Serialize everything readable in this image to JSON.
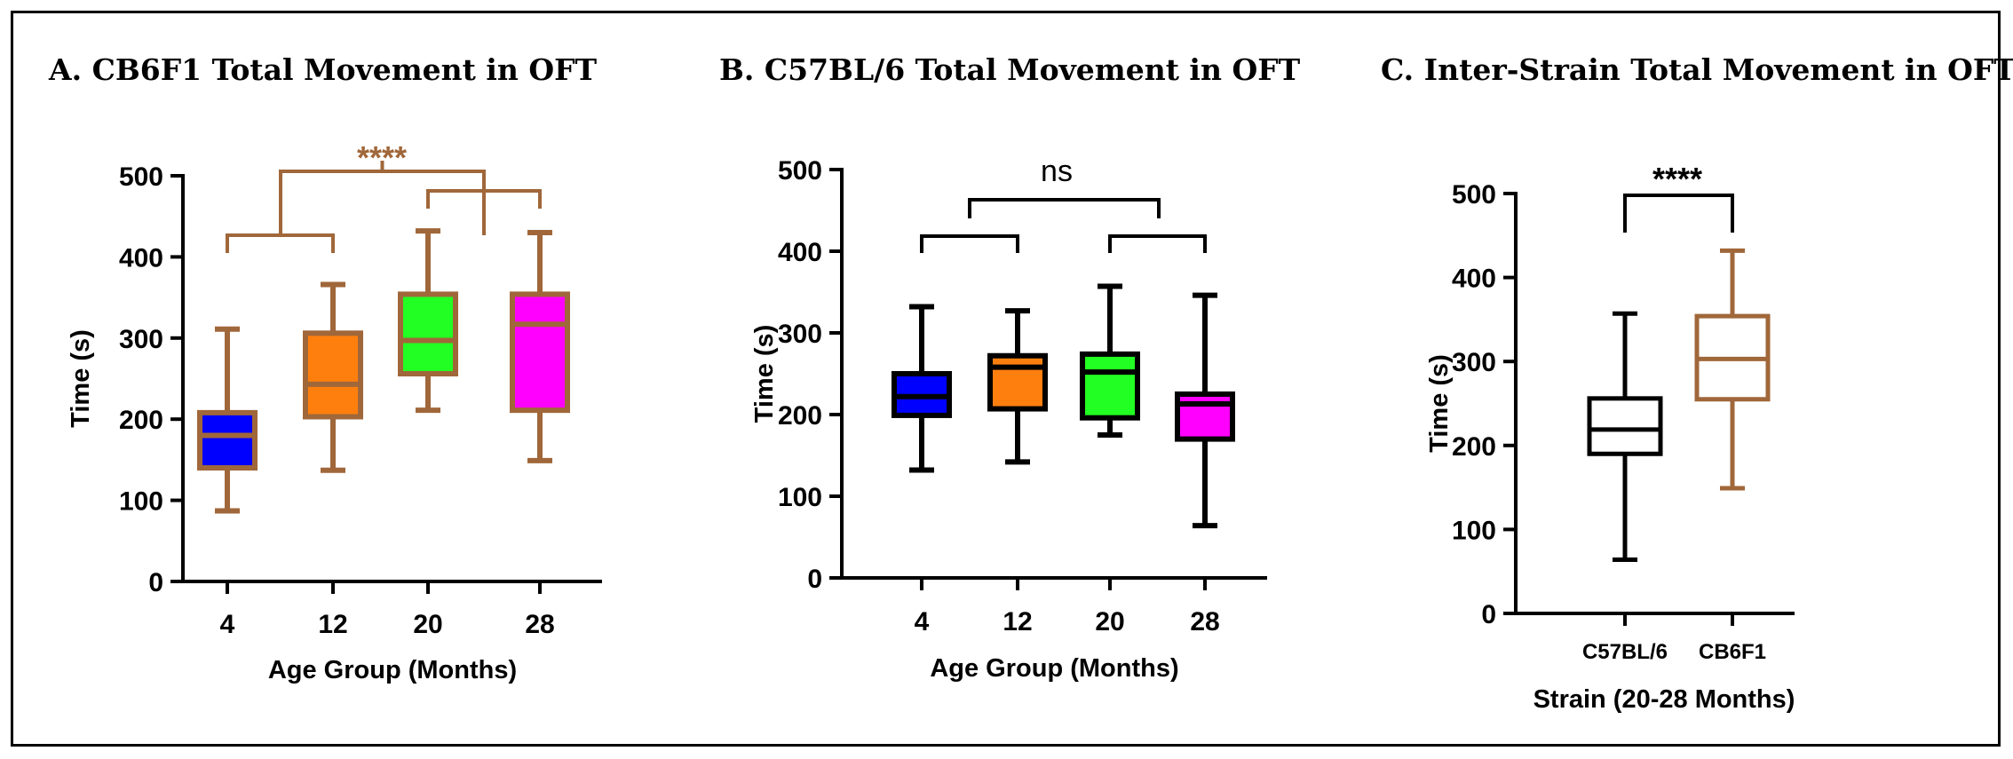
{
  "chart_data": [
    {
      "type": "box",
      "title": "A.  CB6F1 Total Movement in OFT",
      "xlabel": "Age Group (Months)",
      "ylabel": "Time (s)",
      "ylim": [
        0,
        500
      ],
      "yticks": [
        "0",
        "100",
        "200",
        "300",
        "400",
        "500"
      ],
      "categories": [
        "4",
        "12",
        "20",
        "28"
      ],
      "stroke_color": "#A0673A",
      "fill_colors": [
        "#0000FF",
        "#FF7F0E",
        "#22FF22",
        "#FF00FF"
      ],
      "boxes": [
        {
          "min": 87,
          "q1": 140,
          "median": 180,
          "q3": 208,
          "max": 311
        },
        {
          "min": 137,
          "q1": 203,
          "median": 243,
          "q3": 306,
          "max": 366
        },
        {
          "min": 211,
          "q1": 256,
          "median": 297,
          "q3": 354,
          "max": 432
        },
        {
          "min": 149,
          "q1": 211,
          "median": 317,
          "q3": 354,
          "max": 430
        }
      ],
      "significance": {
        "label": "****",
        "color": "#A0673A"
      }
    },
    {
      "type": "box",
      "title": "B.  C57BL/6 Total Movement in OFT",
      "xlabel": "Age Group (Months)",
      "ylabel": "Time (s)",
      "ylim": [
        0,
        500
      ],
      "yticks": [
        "0",
        "100",
        "200",
        "300",
        "400",
        "500"
      ],
      "categories": [
        "4",
        "12",
        "20",
        "28"
      ],
      "stroke_color": "#000000",
      "fill_colors": [
        "#0000FF",
        "#FF7F0E",
        "#22FF22",
        "#FF00FF"
      ],
      "boxes": [
        {
          "min": 132,
          "q1": 199,
          "median": 222,
          "q3": 250,
          "max": 332
        },
        {
          "min": 142,
          "q1": 207,
          "median": 258,
          "q3": 272,
          "max": 327
        },
        {
          "min": 175,
          "q1": 196,
          "median": 252,
          "q3": 274,
          "max": 357
        },
        {
          "min": 64,
          "q1": 170,
          "median": 213,
          "q3": 225,
          "max": 346
        }
      ],
      "significance": {
        "label": "ns",
        "color": "#000000"
      }
    },
    {
      "type": "box",
      "title": "C. Inter-Strain Total Movement in OFT",
      "xlabel": "Strain (20-28 Months)",
      "ylabel": "Time (s)",
      "ylim": [
        0,
        500
      ],
      "yticks": [
        "0",
        "100",
        "200",
        "300",
        "400",
        "500"
      ],
      "categories": [
        "C57BL/6",
        "CB6F1"
      ],
      "stroke_colors": [
        "#000000",
        "#A0673A"
      ],
      "fill_colors": [
        "#FFFFFF",
        "#FFFFFF"
      ],
      "boxes": [
        {
          "min": 64,
          "q1": 190,
          "median": 219,
          "q3": 256,
          "max": 357
        },
        {
          "min": 149,
          "q1": 255,
          "median": 303,
          "q3": 354,
          "max": 432
        }
      ],
      "significance": {
        "label": "****",
        "color": "#000000"
      }
    }
  ]
}
